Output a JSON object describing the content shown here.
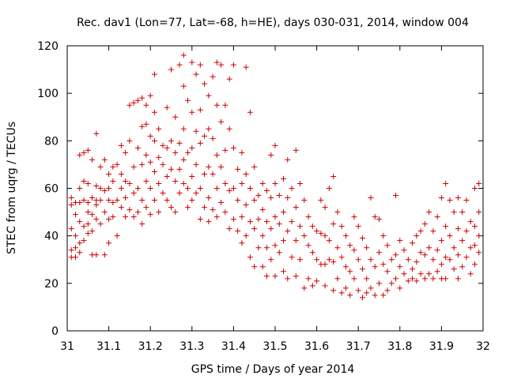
{
  "chart_data": {
    "type": "scatter",
    "title": "Rec. dav1 (Lon=77, Lat=-68, h=HE), days 030-031, 2014, window 004",
    "xlabel": "GPS time / Days of year 2014",
    "ylabel": "STEC from uqrg / TECUs",
    "xlim": [
      31,
      32
    ],
    "ylim": [
      0,
      120
    ],
    "xticks": [
      "31",
      "31.1",
      "31.2",
      "31.3",
      "31.4",
      "31.5",
      "31.6",
      "31.7",
      "31.8",
      "31.9",
      "32"
    ],
    "yticks": [
      "0",
      "20",
      "40",
      "60",
      "80",
      "100",
      "120"
    ],
    "grid": false,
    "legend": "none",
    "marker": "+",
    "color": "#cc0000",
    "points": [
      [
        31.01,
        56
      ],
      [
        31.01,
        53
      ],
      [
        31.01,
        43
      ],
      [
        31.01,
        34
      ],
      [
        31.01,
        31
      ],
      [
        31.02,
        54
      ],
      [
        31.02,
        49
      ],
      [
        31.02,
        40
      ],
      [
        31.02,
        35
      ],
      [
        31.02,
        31
      ],
      [
        31.03,
        74
      ],
      [
        31.03,
        60
      ],
      [
        31.03,
        54
      ],
      [
        31.03,
        46
      ],
      [
        31.03,
        37
      ],
      [
        31.03,
        33
      ],
      [
        31.04,
        75
      ],
      [
        31.04,
        63
      ],
      [
        31.04,
        55
      ],
      [
        31.04,
        44
      ],
      [
        31.04,
        38
      ],
      [
        31.05,
        76
      ],
      [
        31.05,
        62
      ],
      [
        31.05,
        54
      ],
      [
        31.05,
        50
      ],
      [
        31.05,
        45
      ],
      [
        31.05,
        41
      ],
      [
        31.06,
        72
      ],
      [
        31.06,
        56
      ],
      [
        31.06,
        49
      ],
      [
        31.06,
        42
      ],
      [
        31.06,
        32
      ],
      [
        31.07,
        83
      ],
      [
        31.07,
        61
      ],
      [
        31.07,
        55
      ],
      [
        31.07,
        53
      ],
      [
        31.07,
        47
      ],
      [
        31.07,
        32
      ],
      [
        31.08,
        69
      ],
      [
        31.08,
        60
      ],
      [
        31.08,
        55
      ],
      [
        31.08,
        45
      ],
      [
        31.09,
        72
      ],
      [
        31.09,
        59
      ],
      [
        31.09,
        50
      ],
      [
        31.09,
        32
      ],
      [
        31.1,
        66
      ],
      [
        31.1,
        60
      ],
      [
        31.1,
        55
      ],
      [
        31.1,
        47
      ],
      [
        31.1,
        37
      ],
      [
        31.11,
        69
      ],
      [
        31.11,
        63
      ],
      [
        31.11,
        54
      ],
      [
        31.11,
        48
      ],
      [
        31.12,
        70
      ],
      [
        31.12,
        55
      ],
      [
        31.12,
        40
      ],
      [
        31.13,
        78
      ],
      [
        31.13,
        66
      ],
      [
        31.13,
        60
      ],
      [
        31.13,
        52
      ],
      [
        31.14,
        75
      ],
      [
        31.14,
        63
      ],
      [
        31.14,
        56
      ],
      [
        31.14,
        48
      ],
      [
        31.15,
        95
      ],
      [
        31.15,
        80
      ],
      [
        31.15,
        62
      ],
      [
        31.15,
        51
      ],
      [
        31.16,
        96
      ],
      [
        31.16,
        69
      ],
      [
        31.16,
        58
      ],
      [
        31.16,
        48
      ],
      [
        31.17,
        97
      ],
      [
        31.17,
        77
      ],
      [
        31.17,
        60
      ],
      [
        31.17,
        50
      ],
      [
        31.18,
        98
      ],
      [
        31.18,
        86
      ],
      [
        31.18,
        70
      ],
      [
        31.18,
        55
      ],
      [
        31.18,
        45
      ],
      [
        31.19,
        95
      ],
      [
        31.19,
        87
      ],
      [
        31.19,
        74
      ],
      [
        31.19,
        63
      ],
      [
        31.19,
        52
      ],
      [
        31.2,
        99
      ],
      [
        31.2,
        82
      ],
      [
        31.2,
        71
      ],
      [
        31.2,
        60
      ],
      [
        31.2,
        49
      ],
      [
        31.21,
        108
      ],
      [
        31.21,
        92
      ],
      [
        31.21,
        80
      ],
      [
        31.21,
        67
      ],
      [
        31.21,
        55
      ],
      [
        31.22,
        85
      ],
      [
        31.22,
        73
      ],
      [
        31.22,
        62
      ],
      [
        31.22,
        50
      ],
      [
        31.23,
        78
      ],
      [
        31.23,
        70
      ],
      [
        31.23,
        58
      ],
      [
        31.24,
        94
      ],
      [
        31.24,
        77
      ],
      [
        31.24,
        65
      ],
      [
        31.24,
        55
      ],
      [
        31.25,
        110
      ],
      [
        31.25,
        80
      ],
      [
        31.25,
        68
      ],
      [
        31.25,
        52
      ],
      [
        31.26,
        90
      ],
      [
        31.26,
        75
      ],
      [
        31.26,
        63
      ],
      [
        31.26,
        50
      ],
      [
        31.27,
        112
      ],
      [
        31.27,
        79
      ],
      [
        31.27,
        68
      ],
      [
        31.27,
        58
      ],
      [
        31.28,
        116
      ],
      [
        31.28,
        103
      ],
      [
        31.28,
        85
      ],
      [
        31.28,
        72
      ],
      [
        31.28,
        62
      ],
      [
        31.29,
        97
      ],
      [
        31.29,
        75
      ],
      [
        31.29,
        60
      ],
      [
        31.29,
        52
      ],
      [
        31.3,
        113
      ],
      [
        31.3,
        92
      ],
      [
        31.3,
        77
      ],
      [
        31.3,
        65
      ],
      [
        31.3,
        55
      ],
      [
        31.31,
        108
      ],
      [
        31.31,
        84
      ],
      [
        31.31,
        70
      ],
      [
        31.31,
        58
      ],
      [
        31.32,
        112
      ],
      [
        31.32,
        93
      ],
      [
        31.32,
        79
      ],
      [
        31.32,
        60
      ],
      [
        31.32,
        47
      ],
      [
        31.33,
        104
      ],
      [
        31.33,
        82
      ],
      [
        31.33,
        66
      ],
      [
        31.33,
        52
      ],
      [
        31.34,
        99
      ],
      [
        31.34,
        85
      ],
      [
        31.34,
        69
      ],
      [
        31.34,
        56
      ],
      [
        31.34,
        46
      ],
      [
        31.35,
        107
      ],
      [
        31.35,
        81
      ],
      [
        31.35,
        66
      ],
      [
        31.35,
        51
      ],
      [
        31.36,
        113
      ],
      [
        31.36,
        95
      ],
      [
        31.36,
        74
      ],
      [
        31.36,
        60
      ],
      [
        31.36,
        48
      ],
      [
        31.37,
        112
      ],
      [
        31.37,
        88
      ],
      [
        31.37,
        69
      ],
      [
        31.37,
        54
      ],
      [
        31.38,
        95
      ],
      [
        31.38,
        76
      ],
      [
        31.38,
        62
      ],
      [
        31.38,
        50
      ],
      [
        31.39,
        106
      ],
      [
        31.39,
        85
      ],
      [
        31.39,
        59
      ],
      [
        31.39,
        43
      ],
      [
        31.4,
        112
      ],
      [
        31.4,
        77
      ],
      [
        31.4,
        60
      ],
      [
        31.4,
        47
      ],
      [
        31.41,
        68
      ],
      [
        31.41,
        55
      ],
      [
        31.41,
        42
      ],
      [
        31.42,
        75
      ],
      [
        31.42,
        62
      ],
      [
        31.42,
        48
      ],
      [
        31.42,
        37
      ],
      [
        31.43,
        111
      ],
      [
        31.43,
        66
      ],
      [
        31.43,
        53
      ],
      [
        31.43,
        40
      ],
      [
        31.44,
        92
      ],
      [
        31.44,
        60
      ],
      [
        31.44,
        46
      ],
      [
        31.44,
        31
      ],
      [
        31.45,
        69
      ],
      [
        31.45,
        55
      ],
      [
        31.45,
        43
      ],
      [
        31.45,
        27
      ],
      [
        31.46,
        57
      ],
      [
        31.46,
        47
      ],
      [
        31.46,
        35
      ],
      [
        31.47,
        62
      ],
      [
        31.47,
        51
      ],
      [
        31.47,
        40
      ],
      [
        31.47,
        27
      ],
      [
        31.48,
        59
      ],
      [
        31.48,
        46
      ],
      [
        31.48,
        35
      ],
      [
        31.48,
        23
      ],
      [
        31.49,
        74
      ],
      [
        31.49,
        56
      ],
      [
        31.49,
        43
      ],
      [
        31.49,
        30
      ],
      [
        31.5,
        78
      ],
      [
        31.5,
        62
      ],
      [
        31.5,
        48
      ],
      [
        31.5,
        36
      ],
      [
        31.5,
        23
      ],
      [
        31.51,
        57
      ],
      [
        31.51,
        45
      ],
      [
        31.51,
        33
      ],
      [
        31.52,
        64
      ],
      [
        31.52,
        50
      ],
      [
        31.52,
        38
      ],
      [
        31.52,
        25
      ],
      [
        31.53,
        72
      ],
      [
        31.53,
        56
      ],
      [
        31.53,
        42
      ],
      [
        31.53,
        22
      ],
      [
        31.54,
        60
      ],
      [
        31.54,
        46
      ],
      [
        31.54,
        31
      ],
      [
        31.55,
        76
      ],
      [
        31.55,
        52
      ],
      [
        31.55,
        38
      ],
      [
        31.55,
        23
      ],
      [
        31.56,
        62
      ],
      [
        31.56,
        44
      ],
      [
        31.56,
        30
      ],
      [
        31.57,
        55
      ],
      [
        31.57,
        40
      ],
      [
        31.57,
        18
      ],
      [
        31.58,
        48
      ],
      [
        31.58,
        36
      ],
      [
        31.58,
        22
      ],
      [
        31.59,
        44
      ],
      [
        31.59,
        33
      ],
      [
        31.59,
        19
      ],
      [
        31.6,
        42
      ],
      [
        31.6,
        30
      ],
      [
        31.6,
        21
      ],
      [
        31.61,
        55
      ],
      [
        31.61,
        41
      ],
      [
        31.61,
        28
      ],
      [
        31.62,
        52
      ],
      [
        31.62,
        40
      ],
      [
        31.62,
        28
      ],
      [
        31.62,
        19
      ],
      [
        31.63,
        60
      ],
      [
        31.63,
        38
      ],
      [
        31.63,
        30
      ],
      [
        31.64,
        65
      ],
      [
        31.64,
        45
      ],
      [
        31.64,
        29
      ],
      [
        31.64,
        17
      ],
      [
        31.65,
        50
      ],
      [
        31.65,
        35
      ],
      [
        31.65,
        22
      ],
      [
        31.66,
        44
      ],
      [
        31.66,
        31
      ],
      [
        31.66,
        16
      ],
      [
        31.67,
        40
      ],
      [
        31.67,
        27
      ],
      [
        31.67,
        18
      ],
      [
        31.68,
        36
      ],
      [
        31.68,
        25
      ],
      [
        31.68,
        15
      ],
      [
        31.69,
        48
      ],
      [
        31.69,
        34
      ],
      [
        31.69,
        22
      ],
      [
        31.7,
        44
      ],
      [
        31.7,
        30
      ],
      [
        31.7,
        17
      ],
      [
        31.71,
        39
      ],
      [
        31.71,
        26
      ],
      [
        31.71,
        14
      ],
      [
        31.72,
        35
      ],
      [
        31.72,
        22
      ],
      [
        31.72,
        16
      ],
      [
        31.73,
        56
      ],
      [
        31.73,
        30
      ],
      [
        31.73,
        18
      ],
      [
        31.74,
        48
      ],
      [
        31.74,
        27
      ],
      [
        31.74,
        15
      ],
      [
        31.75,
        47
      ],
      [
        31.75,
        33
      ],
      [
        31.75,
        20
      ],
      [
        31.76,
        40
      ],
      [
        31.76,
        28
      ],
      [
        31.76,
        15
      ],
      [
        31.77,
        36
      ],
      [
        31.77,
        25
      ],
      [
        31.77,
        17
      ],
      [
        31.78,
        30
      ],
      [
        31.78,
        20
      ],
      [
        31.79,
        57
      ],
      [
        31.79,
        32
      ],
      [
        31.79,
        22
      ],
      [
        31.8,
        38
      ],
      [
        31.8,
        27
      ],
      [
        31.8,
        18
      ],
      [
        31.81,
        34
      ],
      [
        31.81,
        24
      ],
      [
        31.82,
        30
      ],
      [
        31.82,
        21
      ],
      [
        31.83,
        37
      ],
      [
        31.83,
        26
      ],
      [
        31.83,
        22
      ],
      [
        31.84,
        40
      ],
      [
        31.84,
        29
      ],
      [
        31.84,
        21
      ],
      [
        31.85,
        42
      ],
      [
        31.85,
        33
      ],
      [
        31.85,
        24
      ],
      [
        31.86,
        45
      ],
      [
        31.86,
        32
      ],
      [
        31.86,
        22
      ],
      [
        31.87,
        50
      ],
      [
        31.87,
        35
      ],
      [
        31.87,
        24
      ],
      [
        31.88,
        42
      ],
      [
        31.88,
        30
      ],
      [
        31.88,
        22
      ],
      [
        31.89,
        48
      ],
      [
        31.89,
        34
      ],
      [
        31.89,
        25
      ],
      [
        31.9,
        56
      ],
      [
        31.9,
        38
      ],
      [
        31.9,
        28
      ],
      [
        31.9,
        22
      ],
      [
        31.91,
        62
      ],
      [
        31.91,
        44
      ],
      [
        31.91,
        31
      ],
      [
        31.91,
        22
      ],
      [
        31.92,
        55
      ],
      [
        31.92,
        40
      ],
      [
        31.92,
        30
      ],
      [
        31.93,
        50
      ],
      [
        31.93,
        35
      ],
      [
        31.93,
        26
      ],
      [
        31.94,
        56
      ],
      [
        31.94,
        43
      ],
      [
        31.94,
        32
      ],
      [
        31.94,
        22
      ],
      [
        31.95,
        50
      ],
      [
        31.95,
        38
      ],
      [
        31.95,
        27
      ],
      [
        31.96,
        55
      ],
      [
        31.96,
        42
      ],
      [
        31.96,
        31
      ],
      [
        31.97,
        46
      ],
      [
        31.97,
        35
      ],
      [
        31.97,
        24
      ],
      [
        31.98,
        60
      ],
      [
        31.98,
        44
      ],
      [
        31.98,
        36
      ],
      [
        31.98,
        28
      ],
      [
        31.99,
        62
      ],
      [
        31.99,
        50
      ],
      [
        31.99,
        40
      ],
      [
        31.99,
        33
      ]
    ]
  }
}
